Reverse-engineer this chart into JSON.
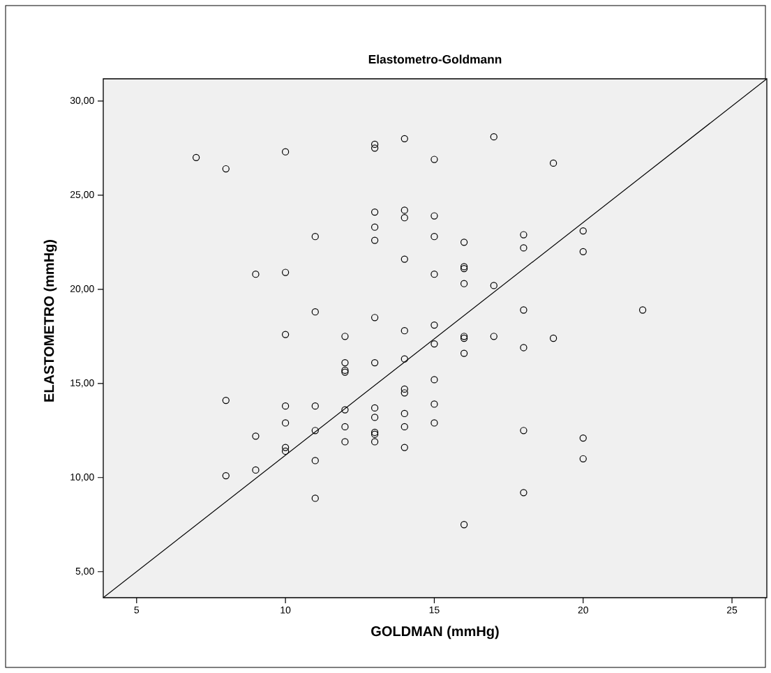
{
  "chart_data": {
    "type": "scatter",
    "title": "Elastometro-Goldmann",
    "xlabel": "GOLDMAN (mmHg)",
    "ylabel": "ELASTOMETRO (mmHg)",
    "xlim": [
      3.88,
      26.17
    ],
    "ylim": [
      3.62,
      31.18
    ],
    "xticks": [
      5,
      10,
      15,
      20,
      25
    ],
    "yticks": [
      {
        "value": 5,
        "label": "5,00"
      },
      {
        "value": 10,
        "label": "10,00"
      },
      {
        "value": 15,
        "label": "15,00"
      },
      {
        "value": 20,
        "label": "20,00"
      },
      {
        "value": 25,
        "label": "25,00"
      },
      {
        "value": 30,
        "label": "30,00"
      }
    ],
    "grid": false,
    "marker": "circle",
    "series": [
      {
        "color": "#000000",
        "x": [
          7,
          8,
          8,
          8,
          9,
          9,
          9,
          10,
          10,
          10,
          10,
          10,
          10,
          10,
          11,
          11,
          11,
          11,
          11,
          11,
          12,
          12,
          12,
          12,
          12,
          12,
          12,
          13,
          13,
          13,
          13,
          13,
          13,
          13,
          13,
          13,
          13,
          13,
          13,
          14,
          14,
          14,
          14,
          14,
          14,
          14,
          14,
          14,
          14,
          14,
          15,
          15,
          15,
          15,
          15,
          15,
          15,
          15,
          15,
          16,
          16,
          16,
          16,
          16,
          16,
          16,
          16,
          17,
          17,
          17,
          18,
          18,
          18,
          18,
          18,
          18,
          19,
          19,
          20,
          20,
          20,
          20,
          22
        ],
        "values": [
          27.0,
          26.4,
          14.1,
          10.1,
          20.8,
          12.2,
          10.4,
          27.3,
          20.9,
          17.6,
          13.8,
          12.9,
          11.6,
          11.4,
          22.8,
          18.8,
          13.8,
          12.5,
          10.9,
          8.9,
          17.5,
          16.1,
          15.7,
          15.6,
          13.6,
          12.7,
          11.9,
          27.7,
          27.5,
          24.1,
          23.3,
          22.6,
          18.5,
          16.1,
          13.7,
          13.2,
          12.4,
          12.3,
          11.9,
          28.0,
          24.2,
          23.8,
          21.6,
          17.8,
          16.3,
          14.7,
          14.5,
          13.4,
          12.7,
          11.6,
          26.9,
          23.9,
          22.8,
          20.8,
          18.1,
          17.1,
          15.2,
          13.9,
          12.9,
          22.5,
          21.2,
          21.1,
          20.3,
          17.5,
          17.4,
          16.6,
          7.5,
          28.1,
          20.2,
          17.5,
          22.9,
          22.2,
          18.9,
          16.9,
          12.5,
          9.2,
          26.7,
          17.4,
          23.1,
          22.0,
          12.1,
          11.0,
          18.9
        ]
      },
      {
        "type": "line",
        "marker": "none",
        "color": "#000000",
        "x": [
          3.88,
          26.17
        ],
        "values": [
          3.62,
          31.18
        ]
      }
    ]
  }
}
